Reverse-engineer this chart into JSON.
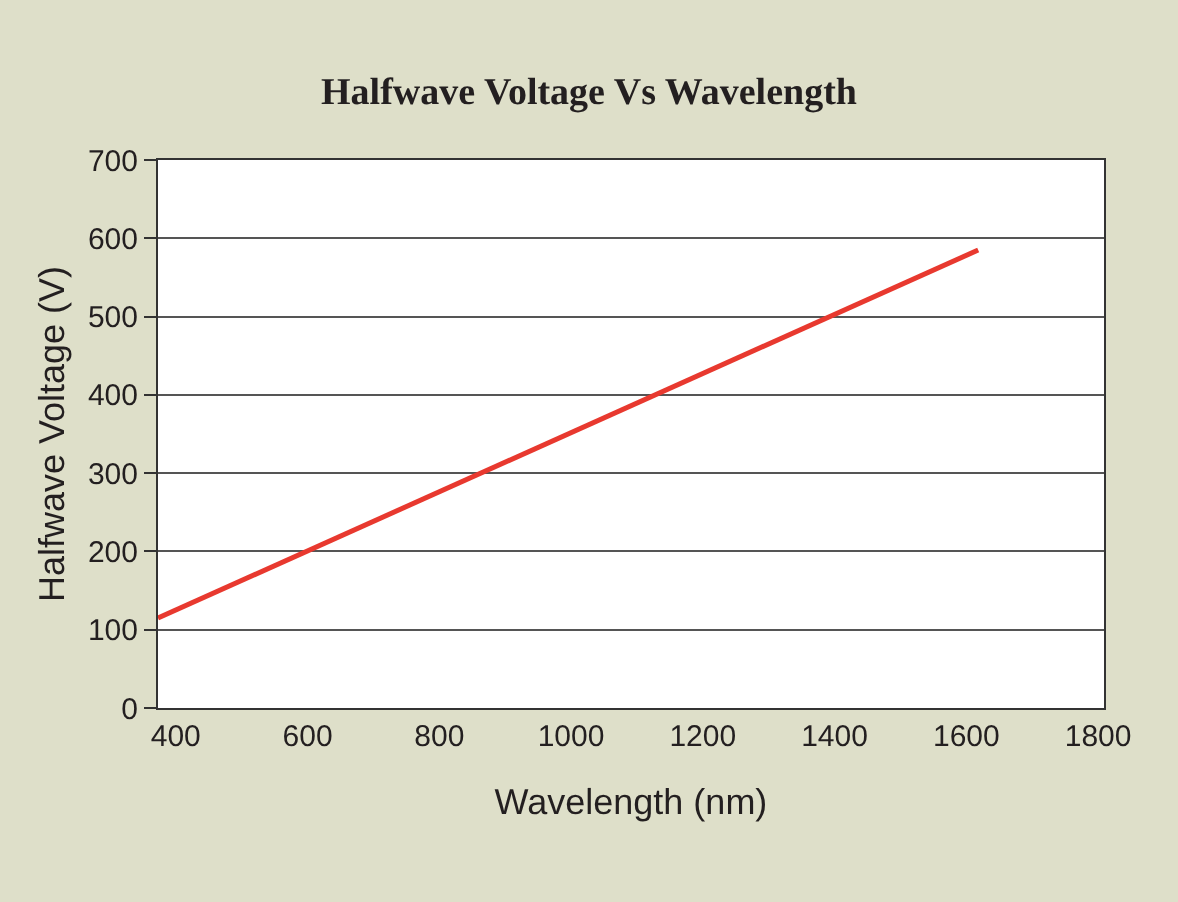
{
  "chart_data": {
    "type": "line",
    "title": "Halfwave Voltage Vs Wavelength",
    "xlabel": "Wavelength (nm)",
    "ylabel": "Halfwave Voltage (V)",
    "series": [
      {
        "color": "#e8392f",
        "x": [
          373,
          1618
        ],
        "values": [
          115,
          585
        ]
      }
    ],
    "xlim": [
      373,
      1809
    ],
    "xticks": [
      400,
      600,
      800,
      1000,
      1200,
      1400,
      1600,
      1800
    ],
    "ylim": [
      0,
      700
    ],
    "yticks": [
      0,
      100,
      200,
      300,
      400,
      500,
      600,
      700
    ],
    "grid": "y",
    "legend": false,
    "marker": "none",
    "line_style": "solid"
  }
}
